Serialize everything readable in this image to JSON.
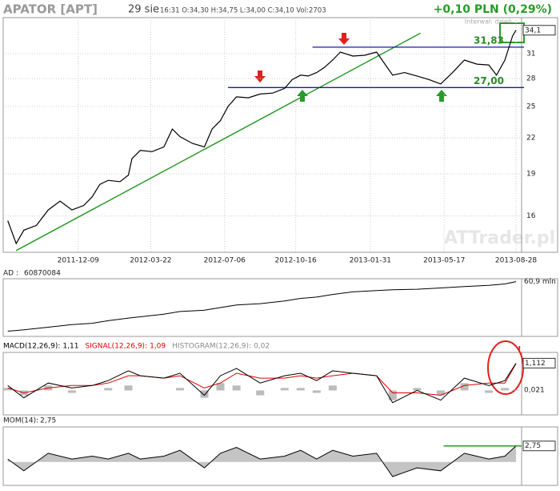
{
  "header": {
    "title": "APATOR [APT]",
    "date": "29 sie",
    "quote": "16:31  O:34,30  H:34,75  L:34,00  C:34,10  Vol:2703",
    "change": "+0,10 PLN (0,29%)",
    "interval": "Interwał: dzień",
    "watermark": "ATTrader.pl"
  },
  "chart_data": [
    {
      "type": "line",
      "log_scale": true,
      "grid": true,
      "color": "#000000",
      "x": [
        "2011-08-30",
        "2011-09-11",
        "2011-09-22",
        "2011-10-10",
        "2011-10-27",
        "2011-11-13",
        "2011-11-30",
        "2011-12-17",
        "2011-12-29",
        "2012-01-09",
        "2012-01-21",
        "2012-02-07",
        "2012-02-19",
        "2012-02-24",
        "2012-03-07",
        "2012-03-24",
        "2012-04-10",
        "2012-04-22",
        "2012-05-03",
        "2012-05-21",
        "2012-06-07",
        "2012-06-18",
        "2012-06-30",
        "2012-07-11",
        "2012-07-23",
        "2012-08-09",
        "2012-08-26",
        "2012-09-13",
        "2012-09-30",
        "2012-10-11",
        "2012-10-23",
        "2012-11-03",
        "2012-11-15",
        "2012-11-26",
        "2012-12-08",
        "2012-12-19",
        "2013-01-06",
        "2013-01-23",
        "2013-02-09",
        "2013-02-21",
        "2013-03-04",
        "2013-03-21",
        "2013-04-08",
        "2013-04-25",
        "2013-05-12",
        "2013-05-29",
        "2013-06-15",
        "2013-07-03",
        "2013-07-20",
        "2013-07-31",
        "2013-08-12",
        "2013-08-23",
        "2013-08-28"
      ],
      "values": [
        15.7,
        14.3,
        15.1,
        15.4,
        16.4,
        17.0,
        16.4,
        16.7,
        17.3,
        18.2,
        18.5,
        18.4,
        18.9,
        20.2,
        20.9,
        20.8,
        21.2,
        22.8,
        22.1,
        21.5,
        21.2,
        22.8,
        23.6,
        25.0,
        26.0,
        25.9,
        26.3,
        26.4,
        26.9,
        27.9,
        28.4,
        28.3,
        28.7,
        29.3,
        30.2,
        31.2,
        30.7,
        30.8,
        31.2,
        29.7,
        28.4,
        28.7,
        28.3,
        27.9,
        27.4,
        28.7,
        30.2,
        29.7,
        29.6,
        28.4,
        30.2,
        33.3,
        34.1
      ],
      "xlim": [
        "2011-08-28",
        "2013-09-05"
      ],
      "xticks": [
        "2011-12-09",
        "2012-03-22",
        "2012-07-06",
        "2012-10-16",
        "2013-01-31",
        "2013-05-17",
        "2013-08-28"
      ],
      "ylim": [
        13.8,
        35.9
      ],
      "yticks": [
        16,
        19,
        22,
        25,
        28,
        31
      ],
      "last_value": {
        "value": 34.1,
        "label": "34,1"
      },
      "trend": {
        "color": "#2a9a2a",
        "x": [
          "2011-09-11",
          "2013-04-13"
        ],
        "values": [
          13.9,
          33.7
        ]
      },
      "levels": [
        {
          "value": 31.83,
          "label": "31,83",
          "from": "2012-11-09",
          "color": "#1a1aa0"
        },
        {
          "value": 27.0,
          "label": "27,00",
          "from": "2012-07-11",
          "color": "#1a1aa0"
        }
      ]
    },
    {
      "type": "line",
      "name": "AD :",
      "last_value": 60870084,
      "color": "#000000",
      "x": [
        "2011-08-30",
        "2011-09-22",
        "2011-10-27",
        "2011-11-30",
        "2011-12-29",
        "2012-01-21",
        "2012-02-19",
        "2012-03-07",
        "2012-04-10",
        "2012-05-03",
        "2012-06-07",
        "2012-06-30",
        "2012-07-23",
        "2012-08-26",
        "2012-09-30",
        "2012-10-23",
        "2012-11-15",
        "2012-12-08",
        "2013-01-06",
        "2013-02-09",
        "2013-03-04",
        "2013-04-08",
        "2013-05-12",
        "2013-06-15",
        "2013-07-20",
        "2013-08-12",
        "2013-08-28"
      ],
      "values": [
        42,
        42.5,
        43.5,
        44.5,
        45,
        46,
        47,
        47.5,
        48.5,
        49.5,
        50,
        51,
        52,
        52.5,
        53.5,
        54.5,
        55,
        56,
        57,
        57.5,
        57.8,
        58,
        58.5,
        59,
        59.5,
        60,
        60.9
      ],
      "xlim": [
        "2011-08-28",
        "2013-09-05"
      ],
      "ylim": [
        40,
        62
      ],
      "axis_label": {
        "value": 60.9,
        "label": "60,9 mln"
      }
    },
    {
      "type": "macd",
      "x": [
        "2011-08-30",
        "2011-09-22",
        "2011-10-27",
        "2011-11-30",
        "2011-12-29",
        "2012-01-21",
        "2012-02-19",
        "2012-03-07",
        "2012-04-10",
        "2012-05-03",
        "2012-06-07",
        "2012-06-30",
        "2012-07-23",
        "2012-08-26",
        "2012-09-30",
        "2012-10-23",
        "2012-11-15",
        "2012-12-08",
        "2013-01-06",
        "2013-02-09",
        "2013-03-04",
        "2013-04-08",
        "2013-05-12",
        "2013-06-15",
        "2013-07-20",
        "2013-08-12",
        "2013-08-28"
      ],
      "series": [
        {
          "name": "MACD(12,26,9):",
          "last_label": "1,11",
          "color": "#000000",
          "values": [
            0.2,
            -0.3,
            0.3,
            0.1,
            0.2,
            0.4,
            0.8,
            0.6,
            0.5,
            0.7,
            -0.2,
            0.6,
            0.9,
            0.3,
            0.6,
            0.7,
            0.4,
            0.8,
            0.7,
            0.6,
            -0.5,
            0.0,
            -0.4,
            0.5,
            0.2,
            0.4,
            1.11
          ]
        },
        {
          "name": "SIGNAL(12,26,9):",
          "last_label": "1,09",
          "color": "#e00000",
          "values": [
            0.1,
            -0.1,
            0.1,
            0.2,
            0.2,
            0.3,
            0.6,
            0.6,
            0.5,
            0.6,
            0.1,
            0.3,
            0.7,
            0.5,
            0.5,
            0.6,
            0.5,
            0.6,
            0.7,
            0.6,
            -0.1,
            -0.1,
            -0.2,
            0.2,
            0.3,
            0.3,
            1.09
          ]
        },
        {
          "name": "HISTOGRAM(12,26,9):",
          "last_label": "0,02",
          "color": "#bbbbbb",
          "values": [
            0.1,
            -0.2,
            0.2,
            -0.1,
            0,
            0.1,
            0.2,
            0,
            0,
            0.1,
            -0.3,
            0.3,
            0.2,
            -0.2,
            0.1,
            0.1,
            -0.1,
            0.2,
            0,
            0,
            -0.4,
            0.1,
            -0.2,
            0.3,
            -0.1,
            0.1,
            0.02
          ]
        }
      ],
      "xlim": [
        "2011-08-28",
        "2013-09-05"
      ],
      "ylim": [
        -1,
        1.55
      ],
      "axis_labels": [
        {
          "value": 1.112,
          "label": "1,112"
        },
        {
          "value": 0.021,
          "label": "0,021"
        }
      ]
    },
    {
      "type": "momentum",
      "name": "MOM(14):",
      "last_label": "2,75",
      "color": "#000000",
      "x": [
        "2011-08-30",
        "2011-09-22",
        "2011-10-27",
        "2011-11-30",
        "2011-12-29",
        "2012-01-21",
        "2012-02-19",
        "2012-03-07",
        "2012-04-10",
        "2012-05-03",
        "2012-06-07",
        "2012-06-30",
        "2012-07-23",
        "2012-08-26",
        "2012-09-30",
        "2012-10-23",
        "2012-11-15",
        "2012-12-08",
        "2013-01-06",
        "2013-02-09",
        "2013-03-04",
        "2013-04-08",
        "2013-05-12",
        "2013-06-15",
        "2013-07-20",
        "2013-08-12",
        "2013-08-28"
      ],
      "values": [
        0.5,
        -1.5,
        1.5,
        0.5,
        1,
        0.5,
        1.5,
        0.5,
        1,
        2,
        -1,
        1.5,
        2.5,
        0.5,
        1,
        2,
        0.5,
        2,
        1,
        1.5,
        -2.5,
        -1,
        -1.5,
        1.5,
        0.5,
        1,
        2.75
      ],
      "xlim": [
        "2011-08-28",
        "2013-09-05"
      ],
      "ylim": [
        -4,
        6
      ],
      "axis_label": {
        "value": 2.75,
        "label": "2,75"
      },
      "level": {
        "value": 2.75,
        "from": "2013-05-16",
        "color": "#2a9a2a"
      }
    }
  ]
}
